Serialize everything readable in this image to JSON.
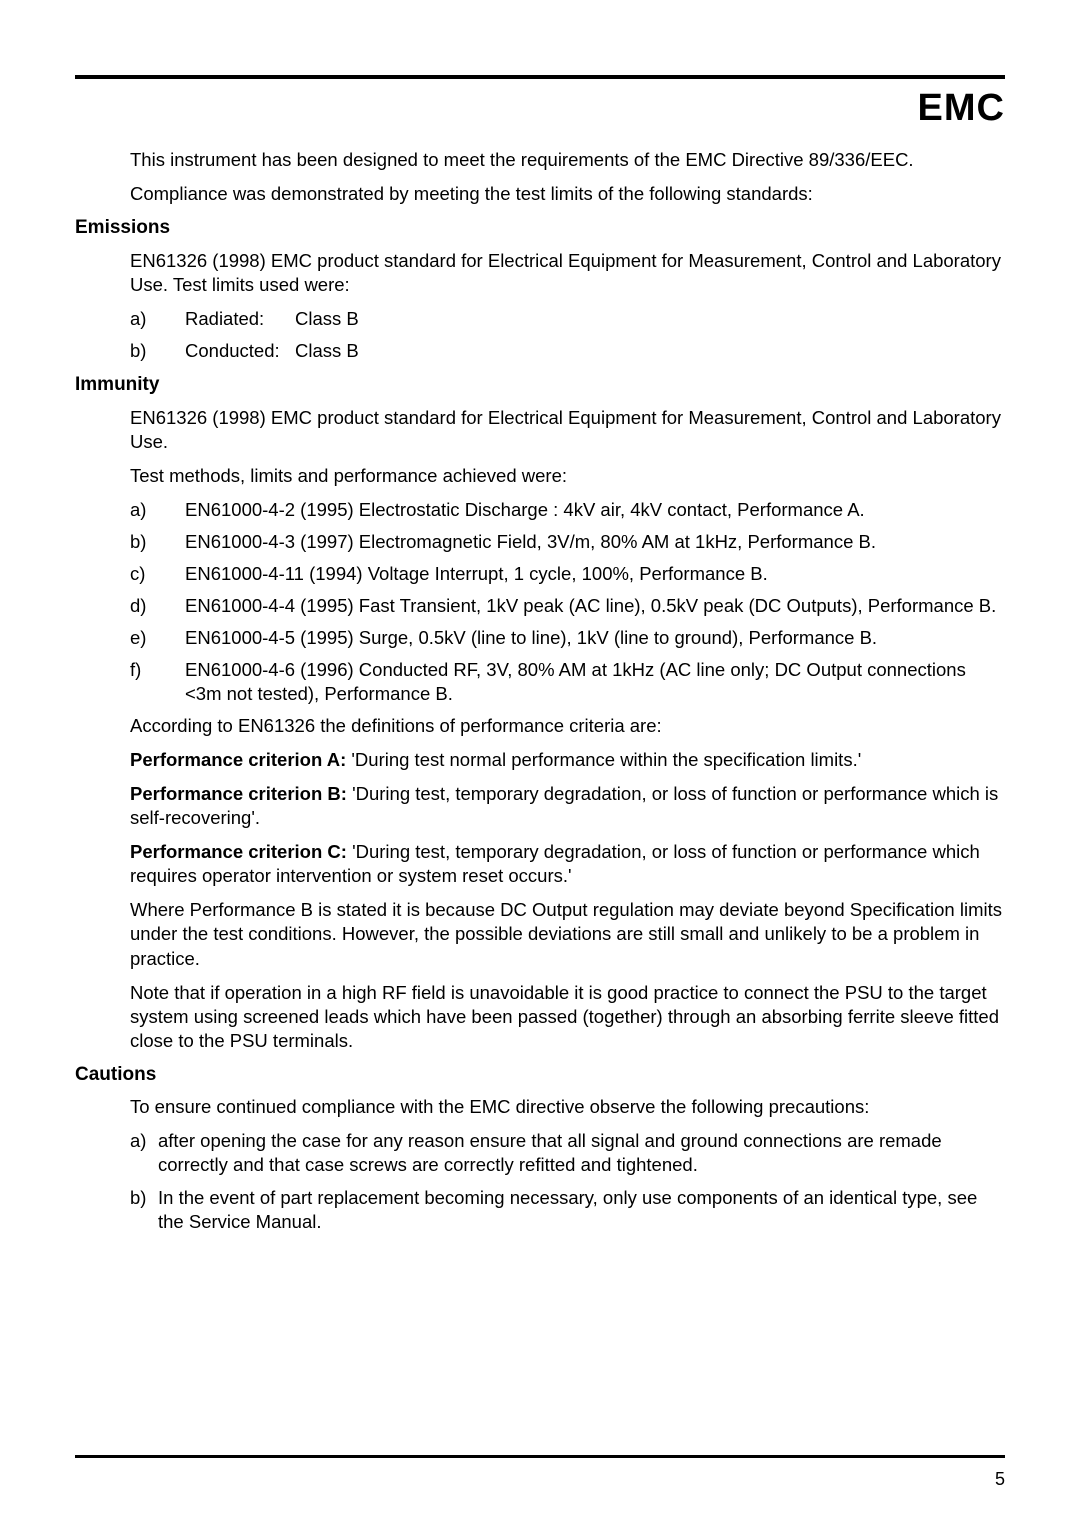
{
  "title": "EMC",
  "intro1": "This instrument has been designed to meet the requirements of the EMC Directive 89/336/EEC.",
  "intro2": "Compliance was demonstrated by meeting the test limits of the following standards:",
  "emissions": {
    "heading": "Emissions",
    "para": "EN61326 (1998) EMC product standard for Electrical Equipment for Measurement, Control and Laboratory Use.  Test limits used were:",
    "items": [
      {
        "marker": "a)",
        "label": "Radiated:",
        "value": "Class B"
      },
      {
        "marker": "b)",
        "label": "Conducted:",
        "value": "Class B"
      }
    ]
  },
  "immunity": {
    "heading": "Immunity",
    "para1": "EN61326 (1998) EMC product standard for Electrical Equipment for Measurement, Control and Laboratory Use.",
    "para2": "Test methods, limits and performance achieved were:",
    "items": [
      {
        "marker": "a)",
        "text": "EN61000-4-2 (1995) Electrostatic Discharge : 4kV air, 4kV contact, Performance A."
      },
      {
        "marker": "b)",
        "text": "EN61000-4-3 (1997) Electromagnetic Field, 3V/m, 80% AM at 1kHz, Performance B."
      },
      {
        "marker": "c)",
        "text": "EN61000-4-11 (1994) Voltage Interrupt, 1 cycle, 100%, Performance B."
      },
      {
        "marker": "d)",
        "text": "EN61000-4-4 (1995) Fast Transient, 1kV peak (AC line), 0.5kV peak (DC Outputs), Performance B."
      },
      {
        "marker": "e)",
        "text": "EN61000-4-5 (1995) Surge, 0.5kV (line to line), 1kV (line to ground), Performance B."
      },
      {
        "marker": "f)",
        "text": "EN61000-4-6 (1996) Conducted RF, 3V, 80% AM at 1kHz (AC line only; DC Output connections <3m not tested), Performance B."
      }
    ],
    "defs_intro": "According to EN61326 the definitions of performance criteria are:",
    "perfA_label": "Performance criterion A:",
    "perfA_text": "  'During test normal performance within the specification limits.'",
    "perfB_label": "Performance criterion B:",
    "perfB_text": "  'During test, temporary degradation, or loss of function or performance which is self-recovering'.",
    "perfC_label": "Performance criterion C:",
    "perfC_text": "  'During test, temporary degradation, or loss of function or performance which requires operator intervention or system reset occurs.'",
    "where_perfB": "Where Performance B is stated it is because DC Output regulation may deviate beyond Specification limits under the test conditions.  However, the possible deviations are still small and unlikely to be a problem in practice.",
    "rf_note": "Note that if operation in a high RF field is unavoidable it is good practice to connect the PSU to the target system using screened leads which have been passed (together) through an absorbing ferrite sleeve fitted close to the PSU terminals."
  },
  "cautions": {
    "heading": "Cautions",
    "para": "To ensure continued compliance with the EMC directive observe the following precautions:",
    "items": [
      {
        "marker": "a)",
        "text": "after opening the case for any reason ensure that all signal and ground connections are remade correctly and that case screws are correctly refitted and tightened."
      },
      {
        "marker": "b)",
        "text": "In the event of part replacement becoming necessary, only use components of an identical type, see the Service Manual."
      }
    ]
  },
  "page_number": "5"
}
